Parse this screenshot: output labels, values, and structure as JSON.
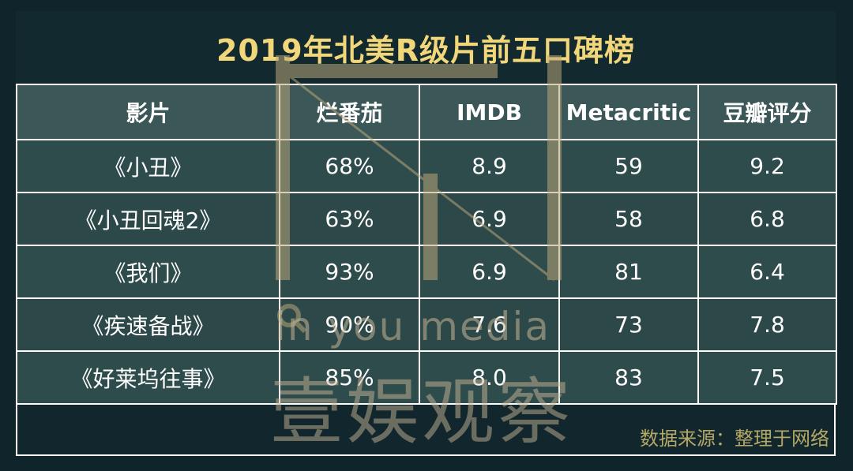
{
  "title": "2019年北美R级片前五口碑榜",
  "table": {
    "headers": [
      "影片",
      "烂番茄",
      "IMDB",
      "Metacritic",
      "豆瓣评分"
    ],
    "rows": [
      [
        "《小丑》",
        "68%",
        "8.9",
        "59",
        "9.2"
      ],
      [
        "《小丑回魂2》",
        "63%",
        "6.9",
        "58",
        "6.8"
      ],
      [
        "《我们》",
        "93%",
        "6.9",
        "81",
        "6.4"
      ],
      [
        "《疾速备战》",
        "90%",
        "7.6",
        "73",
        "7.8"
      ],
      [
        "《好莱坞往事》",
        "85%",
        "8.0",
        "83",
        "7.5"
      ]
    ]
  },
  "source": "数据来源：整理于网络",
  "watermark": {
    "latin": "in you media",
    "chinese": "壹娱观察"
  },
  "colors": {
    "background": "#11262d",
    "title": "#f2d77a",
    "header_cell": "#3b5757",
    "body_cell": "#2f4c4d",
    "border": "#ffffff",
    "source_text": "#b5a866"
  }
}
